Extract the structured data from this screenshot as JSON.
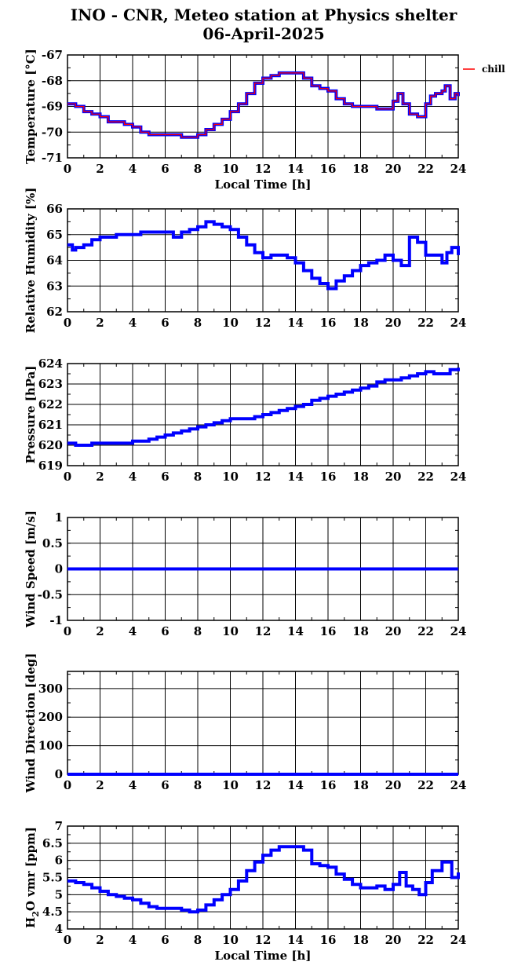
{
  "title_line1": "INO - CNR, Meteo station at Physics shelter",
  "title_line2": "06-April-2025",
  "colors": {
    "series": "#0000ff",
    "chill": "#ff0000",
    "grid": "#000000"
  },
  "chart_data": [
    {
      "type": "line",
      "id": "temperature",
      "ylabel": "Temperature [°C]",
      "xlabel": "Local Time [h]",
      "xlim": [
        0,
        24
      ],
      "ylim": [
        -71,
        -67
      ],
      "yticks": [
        -71,
        -70,
        -69,
        -68,
        -67
      ],
      "grid": true,
      "legend": {
        "position": "right",
        "entries": [
          "chill"
        ]
      },
      "series": [
        {
          "name": "",
          "color": "#0000ff",
          "x": [
            0,
            0.5,
            1,
            1.5,
            2,
            2.5,
            3,
            3.5,
            4,
            4.5,
            5,
            5.5,
            6,
            6.5,
            7,
            7.5,
            8,
            8.5,
            9,
            9.5,
            10,
            10.5,
            11,
            11.5,
            12,
            12.5,
            13,
            13.5,
            14,
            14.5,
            15,
            15.5,
            16,
            16.5,
            17,
            17.5,
            18,
            18.5,
            19,
            19.5,
            20,
            20.3,
            20.6,
            21,
            21.5,
            22,
            22.3,
            22.6,
            23,
            23.2,
            23.5,
            23.8,
            24
          ],
          "y": [
            -68.9,
            -69,
            -69.2,
            -69.3,
            -69.4,
            -69.6,
            -69.6,
            -69.7,
            -69.8,
            -70,
            -70.1,
            -70.1,
            -70.1,
            -70.1,
            -70.2,
            -70.2,
            -70.1,
            -69.9,
            -69.7,
            -69.5,
            -69.2,
            -68.9,
            -68.5,
            -68.1,
            -67.9,
            -67.8,
            -67.7,
            -67.7,
            -67.7,
            -67.9,
            -68.2,
            -68.3,
            -68.4,
            -68.7,
            -68.9,
            -69,
            -69,
            -69,
            -69.1,
            -69.1,
            -68.8,
            -68.5,
            -68.9,
            -69.3,
            -69.4,
            -68.9,
            -68.6,
            -68.5,
            -68.4,
            -68.2,
            -68.7,
            -68.5,
            -68.6
          ]
        },
        {
          "name": "chill",
          "color": "#ff0000",
          "x": [
            0,
            0.5,
            1,
            1.5,
            2,
            2.5,
            3,
            3.5,
            4,
            4.5,
            5,
            5.5,
            6,
            6.5,
            7,
            7.5,
            8,
            8.5,
            9,
            9.5,
            10,
            10.5,
            11,
            11.5,
            12,
            12.5,
            13,
            13.5,
            14,
            14.5,
            15,
            15.5,
            16,
            16.5,
            17,
            17.5,
            18,
            18.5,
            19,
            19.5,
            20,
            20.3,
            20.6,
            21,
            21.5,
            22,
            22.3,
            22.6,
            23,
            23.2,
            23.5,
            23.8,
            24
          ],
          "y": [
            -68.9,
            -69,
            -69.2,
            -69.3,
            -69.4,
            -69.6,
            -69.6,
            -69.7,
            -69.8,
            -70,
            -70.1,
            -70.1,
            -70.1,
            -70.1,
            -70.2,
            -70.2,
            -70.1,
            -69.9,
            -69.7,
            -69.5,
            -69.2,
            -68.9,
            -68.5,
            -68.1,
            -67.9,
            -67.8,
            -67.7,
            -67.7,
            -67.7,
            -67.9,
            -68.2,
            -68.3,
            -68.4,
            -68.7,
            -68.9,
            -69,
            -69,
            -69,
            -69.1,
            -69.1,
            -68.8,
            -68.5,
            -68.9,
            -69.3,
            -69.4,
            -68.9,
            -68.6,
            -68.5,
            -68.4,
            -68.2,
            -68.7,
            -68.5,
            -68.6
          ]
        }
      ]
    },
    {
      "type": "line",
      "id": "humidity",
      "ylabel": "Relative Humidity [%]",
      "xlabel": "",
      "xlim": [
        0,
        24
      ],
      "ylim": [
        62,
        66
      ],
      "yticks": [
        62,
        63,
        64,
        65,
        66
      ],
      "grid": true,
      "series": [
        {
          "name": "",
          "color": "#0000ff",
          "x": [
            0,
            0.3,
            0.5,
            1,
            1.5,
            2,
            2.5,
            3,
            3.5,
            4,
            4.5,
            5,
            5.5,
            6,
            6.5,
            7,
            7.5,
            8,
            8.5,
            9,
            9.5,
            10,
            10.5,
            11,
            11.5,
            12,
            12.5,
            13,
            13.5,
            14,
            14.5,
            15,
            15.5,
            16,
            16.5,
            17,
            17.5,
            18,
            18.5,
            19,
            19.5,
            20,
            20.5,
            21,
            21.5,
            22,
            22.5,
            23,
            23.3,
            23.6,
            24
          ],
          "y": [
            64.6,
            64.4,
            64.5,
            64.6,
            64.8,
            64.9,
            64.9,
            65,
            65,
            65,
            65.1,
            65.1,
            65.1,
            65.1,
            64.9,
            65.1,
            65.2,
            65.3,
            65.5,
            65.4,
            65.3,
            65.2,
            64.9,
            64.6,
            64.3,
            64.1,
            64.2,
            64.2,
            64.1,
            63.9,
            63.6,
            63.3,
            63.1,
            62.9,
            63.2,
            63.4,
            63.6,
            63.8,
            63.9,
            64,
            64.2,
            64,
            63.8,
            64.9,
            64.7,
            64.2,
            64.2,
            63.9,
            64.3,
            64.5,
            64.2
          ]
        }
      ]
    },
    {
      "type": "line",
      "id": "pressure",
      "ylabel": "Pressure [hPa]",
      "xlabel": "",
      "xlim": [
        0,
        24
      ],
      "ylim": [
        619,
        624
      ],
      "yticks": [
        619,
        620,
        621,
        622,
        623,
        624
      ],
      "grid": true,
      "series": [
        {
          "name": "",
          "color": "#0000ff",
          "x": [
            0,
            0.5,
            1,
            1.5,
            2,
            2.5,
            3,
            3.5,
            4,
            4.5,
            5,
            5.5,
            6,
            6.5,
            7,
            7.5,
            8,
            8.5,
            9,
            9.5,
            10,
            10.5,
            11,
            11.5,
            12,
            12.5,
            13,
            13.5,
            14,
            14.5,
            15,
            15.5,
            16,
            16.5,
            17,
            17.5,
            18,
            18.5,
            19,
            19.5,
            20,
            20.5,
            21,
            21.5,
            22,
            22.5,
            23,
            23.5,
            24
          ],
          "y": [
            620.1,
            620,
            620,
            620.1,
            620.1,
            620.1,
            620.1,
            620.1,
            620.2,
            620.2,
            620.3,
            620.4,
            620.5,
            620.6,
            620.7,
            620.8,
            620.9,
            621,
            621.1,
            621.2,
            621.3,
            621.3,
            621.3,
            621.4,
            621.5,
            621.6,
            621.7,
            621.8,
            621.9,
            622,
            622.2,
            622.3,
            622.4,
            622.5,
            622.6,
            622.7,
            622.8,
            622.9,
            623.1,
            623.2,
            623.2,
            623.3,
            623.4,
            623.5,
            623.6,
            623.5,
            623.5,
            623.7,
            623.8
          ]
        }
      ]
    },
    {
      "type": "line",
      "id": "wind-speed",
      "ylabel": "Wind Speed [m/s]",
      "xlabel": "",
      "xlim": [
        0,
        24
      ],
      "ylim": [
        -1,
        1
      ],
      "yticks": [
        -1,
        -0.5,
        0,
        0.5,
        1
      ],
      "grid": true,
      "series": [
        {
          "name": "",
          "color": "#0000ff",
          "x": [
            0,
            24
          ],
          "y": [
            0,
            0
          ]
        }
      ]
    },
    {
      "type": "line",
      "id": "wind-direction",
      "ylabel": "Wind Direction [deg]",
      "xlabel": "",
      "xlim": [
        0,
        24
      ],
      "ylim": [
        0,
        360
      ],
      "yticks": [
        0,
        100,
        200,
        300
      ],
      "grid": true,
      "series": [
        {
          "name": "",
          "color": "#0000ff",
          "x": [
            0,
            24
          ],
          "y": [
            0,
            0
          ]
        }
      ]
    },
    {
      "type": "line",
      "id": "h2o",
      "ylabel": "H2O vmr [ppm]",
      "xlabel": "Local Time [h]",
      "xlim": [
        0,
        24
      ],
      "ylim": [
        4,
        7
      ],
      "yticks": [
        4,
        4.5,
        5,
        5.5,
        6,
        6.5,
        7
      ],
      "grid": true,
      "series": [
        {
          "name": "",
          "color": "#0000ff",
          "x": [
            0,
            0.5,
            1,
            1.5,
            2,
            2.5,
            3,
            3.5,
            4,
            4.5,
            5,
            5.5,
            6,
            6.5,
            7,
            7.5,
            8,
            8.5,
            9,
            9.5,
            10,
            10.5,
            11,
            11.5,
            12,
            12.5,
            13,
            13.5,
            14,
            14.5,
            15,
            15.5,
            16,
            16.5,
            17,
            17.5,
            18,
            18.5,
            19,
            19.5,
            20,
            20.4,
            20.8,
            21.2,
            21.6,
            22,
            22.4,
            22.8,
            23,
            23.3,
            23.6,
            24
          ],
          "y": [
            5.4,
            5.35,
            5.3,
            5.2,
            5.1,
            5,
            4.95,
            4.9,
            4.85,
            4.75,
            4.65,
            4.6,
            4.6,
            4.6,
            4.55,
            4.5,
            4.55,
            4.7,
            4.85,
            5,
            5.15,
            5.4,
            5.7,
            5.95,
            6.15,
            6.3,
            6.4,
            6.4,
            6.4,
            6.3,
            5.9,
            5.85,
            5.8,
            5.6,
            5.45,
            5.3,
            5.2,
            5.2,
            5.25,
            5.15,
            5.3,
            5.65,
            5.25,
            5.15,
            5.0,
            5.35,
            5.7,
            5.7,
            5.95,
            5.95,
            5.5,
            5.65
          ]
        }
      ]
    }
  ]
}
